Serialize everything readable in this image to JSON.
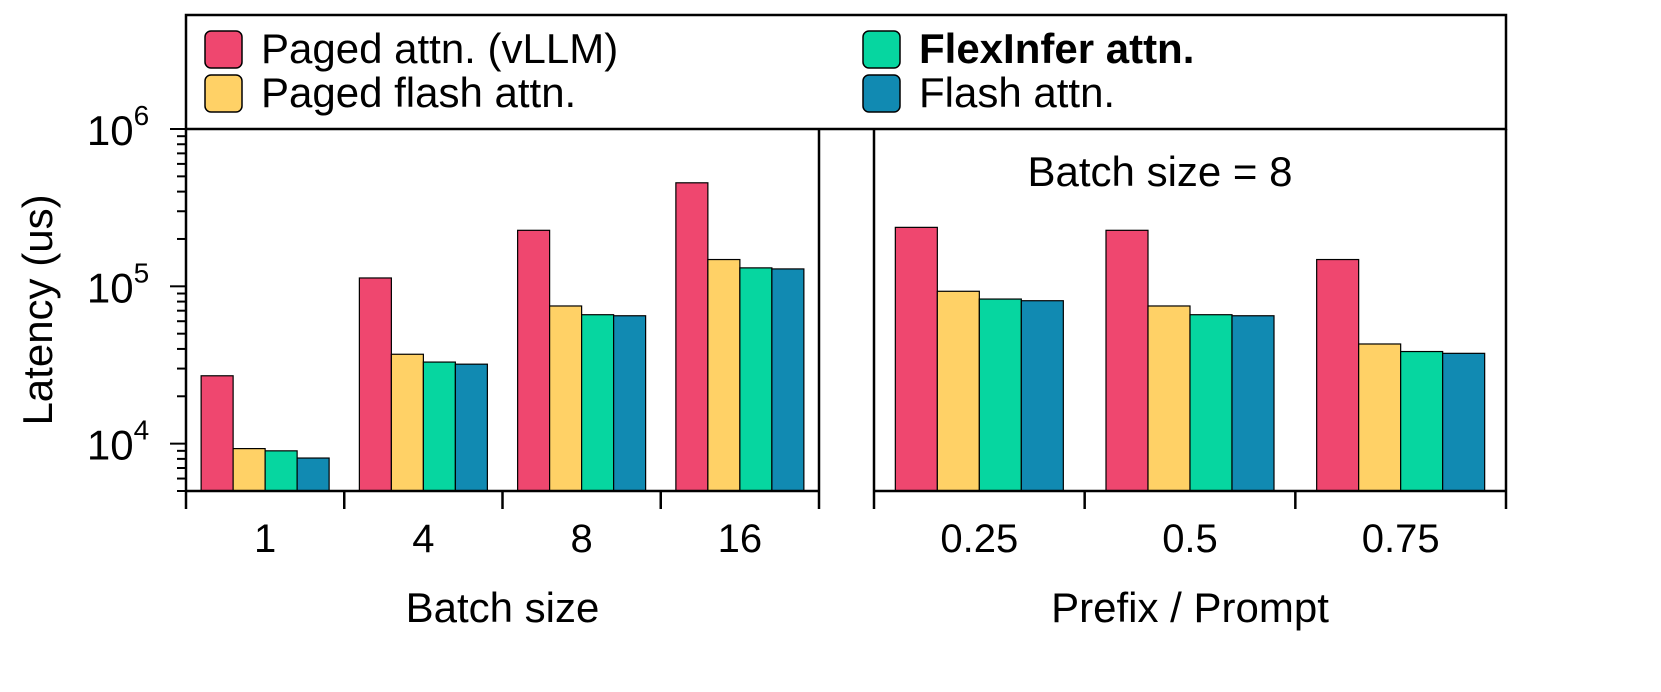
{
  "colors": {
    "Paged attn. (vLLM)": "#ef476f",
    "Paged flash attn.": "#ffd166",
    "FlexInfer attn.": "#06d6a0",
    "Flash attn.": "#118ab2"
  },
  "legend": {
    "items": [
      "Paged attn. (vLLM)",
      "Paged flash attn.",
      "FlexInfer attn.",
      "Flash attn."
    ],
    "bold_item": "FlexInfer attn."
  },
  "chart_data": [
    {
      "type": "bar",
      "title": "",
      "xlabel": "Batch size",
      "ylabel": "Latency (us)",
      "yscale": "log",
      "ylim": [
        5000,
        1000000
      ],
      "yticks": [
        10000,
        100000,
        1000000
      ],
      "categories": [
        "1",
        "4",
        "8",
        "16"
      ],
      "series": [
        {
          "name": "Paged attn. (vLLM)",
          "values": [
            27000,
            113000,
            227000,
            455000
          ]
        },
        {
          "name": "Paged flash attn.",
          "values": [
            9300,
            37000,
            75000,
            148000
          ]
        },
        {
          "name": "FlexInfer attn.",
          "values": [
            9000,
            33000,
            66000,
            131000
          ]
        },
        {
          "name": "Flash attn.",
          "values": [
            8100,
            32000,
            65000,
            129000
          ]
        }
      ]
    },
    {
      "type": "bar",
      "title": "Batch size = 8",
      "xlabel": "Prefix / Prompt",
      "ylabel": "",
      "yscale": "log",
      "ylim": [
        5000,
        1000000
      ],
      "categories": [
        "0.25",
        "0.5",
        "0.75"
      ],
      "series": [
        {
          "name": "Paged attn. (vLLM)",
          "values": [
            237000,
            227000,
            148000
          ]
        },
        {
          "name": "Paged flash attn.",
          "values": [
            93000,
            75000,
            43000
          ]
        },
        {
          "name": "FlexInfer attn.",
          "values": [
            83000,
            66000,
            38500
          ]
        },
        {
          "name": "Flash attn.",
          "values": [
            81000,
            65000,
            37500
          ]
        }
      ]
    }
  ]
}
